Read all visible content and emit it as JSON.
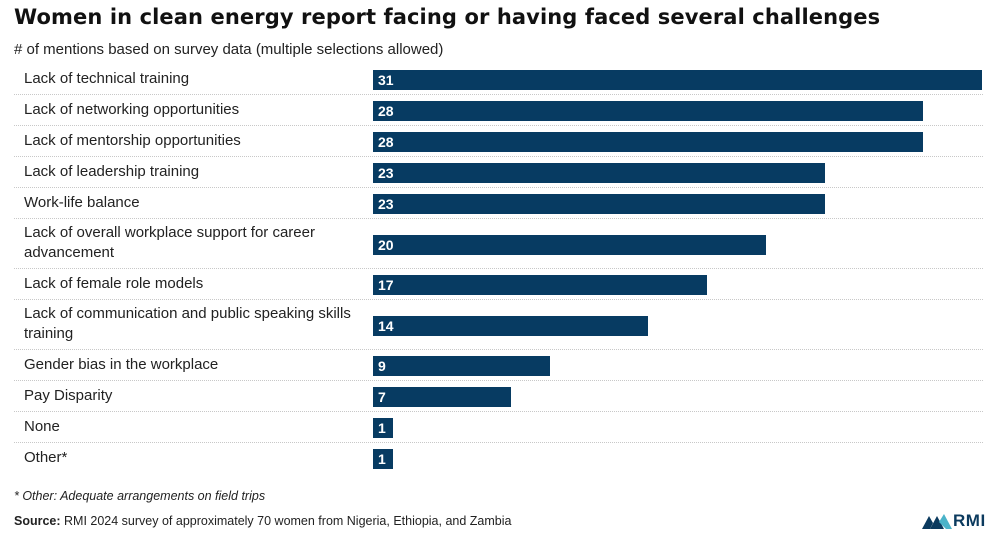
{
  "header": {
    "title": "Women in clean energy report facing or having faced several challenges",
    "subtitle": "# of mentions based on survey data (multiple selections allowed)"
  },
  "footer": {
    "footnote": "* Other: Adequate arrangements on field trips",
    "source_label": "Source:",
    "source_text": " RMI 2024 survey of approximately 70 women from Nigeria, Ethiopia, and Zambia",
    "logo_text": "RMI"
  },
  "colors": {
    "bar": "#073b62",
    "logo_light": "#4ab3c9"
  },
  "chart_data": {
    "type": "bar",
    "orientation": "horizontal",
    "title": "Women in clean energy report facing or having faced several challenges",
    "subtitle": "# of mentions based on survey data (multiple selections allowed)",
    "xlabel": "",
    "ylabel": "",
    "xlim": [
      0,
      31
    ],
    "grid": false,
    "legend": "none",
    "categories": [
      "Lack of technical training",
      "Lack of networking opportunities",
      "Lack of mentorship opportunities",
      "Lack of leadership training",
      "Work-life balance",
      "Lack of overall workplace support for career advancement",
      "Lack of female role models",
      "Lack of communication and public speaking skills training",
      "Gender bias in the workplace",
      "Pay Disparity",
      "None",
      "Other*"
    ],
    "values": [
      31,
      28,
      28,
      23,
      23,
      20,
      17,
      14,
      9,
      7,
      1,
      1
    ]
  }
}
